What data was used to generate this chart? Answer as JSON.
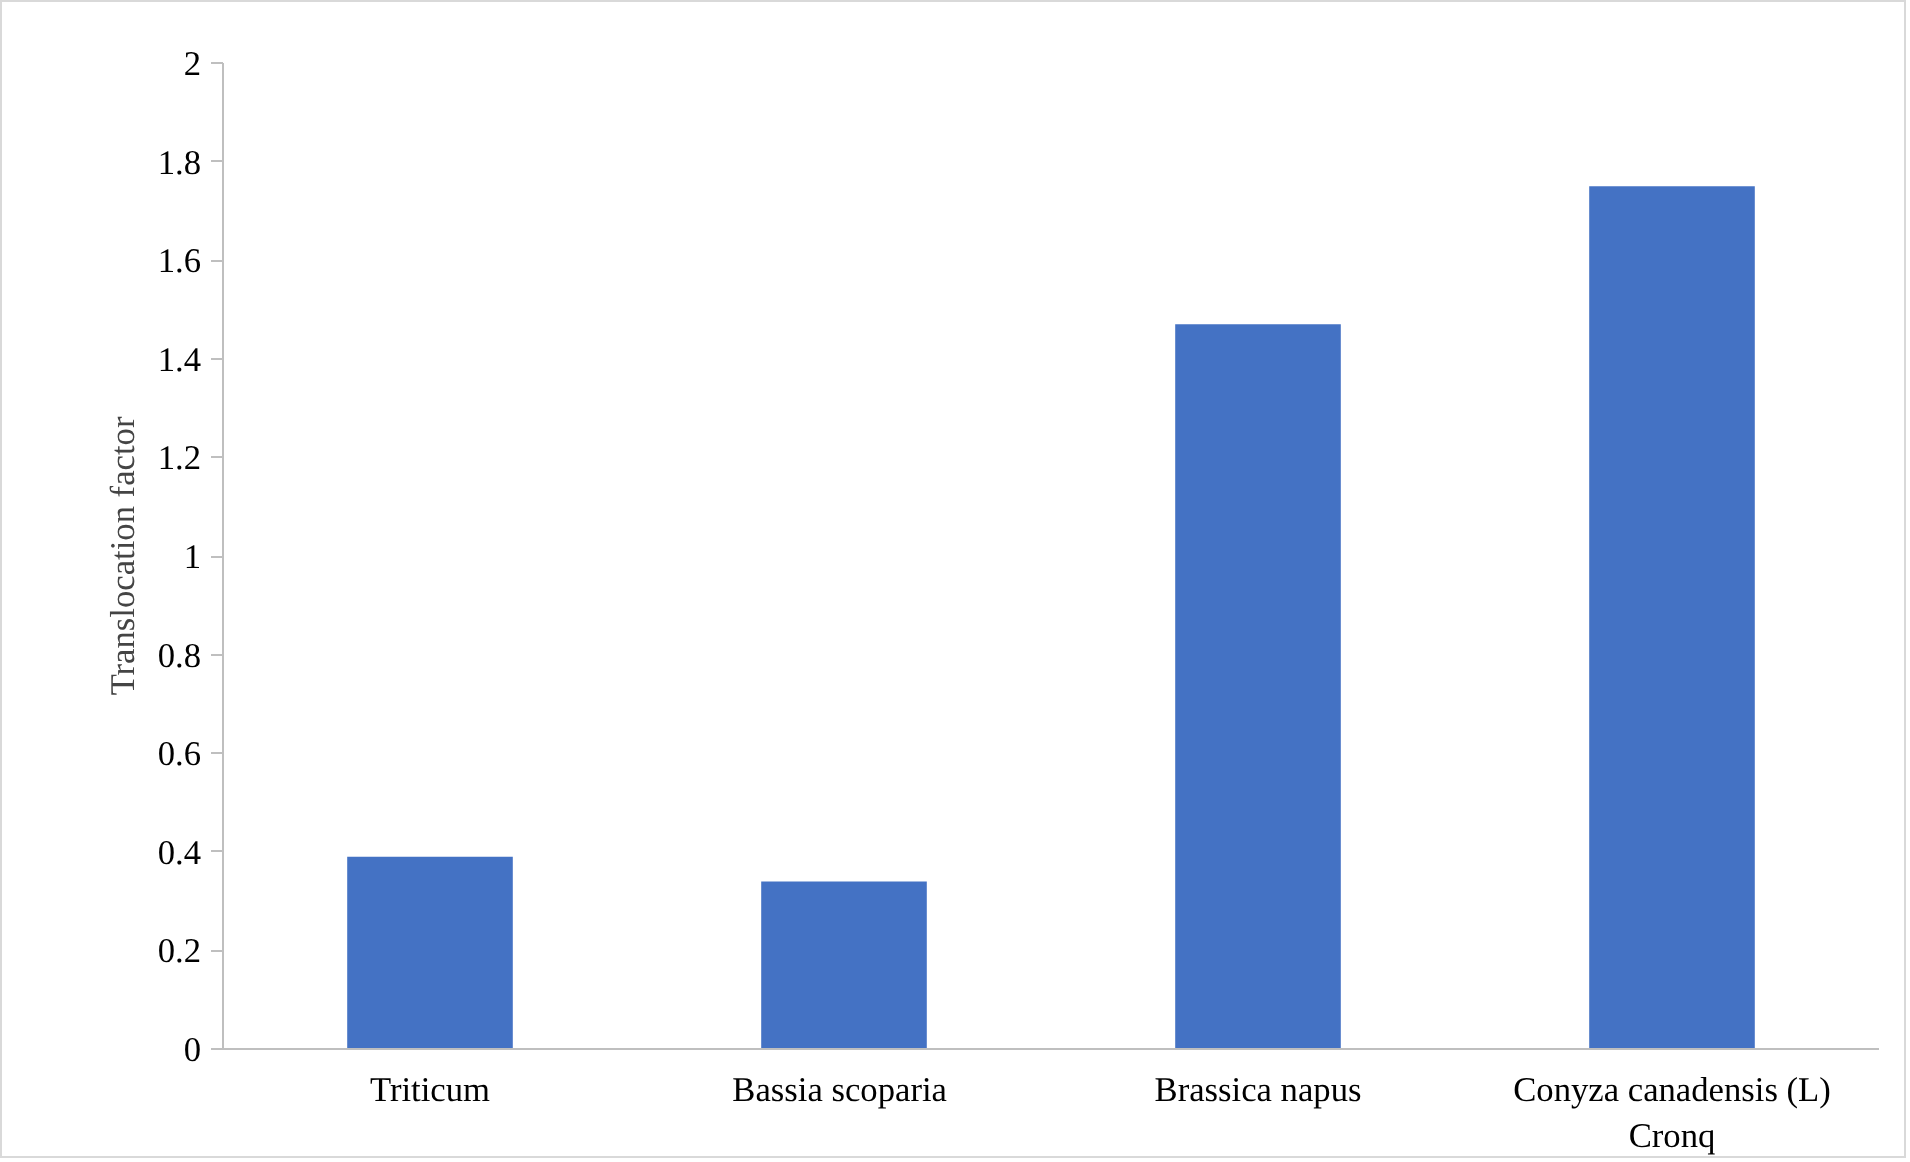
{
  "chart_data": {
    "type": "bar",
    "ylabel": "Translocation factor",
    "categories": [
      "Triticum",
      "Bassia  scoparia",
      "Brassica napus",
      "Conyza canadensis (L) Cronq"
    ],
    "values": [
      0.39,
      0.34,
      1.47,
      1.75
    ],
    "color": "#4472c4",
    "ylim": [
      0,
      2
    ],
    "yticks": [
      0,
      0.2,
      0.4,
      0.6,
      0.8,
      1,
      1.2,
      1.4,
      1.6,
      1.8,
      2
    ],
    "grid": false
  }
}
